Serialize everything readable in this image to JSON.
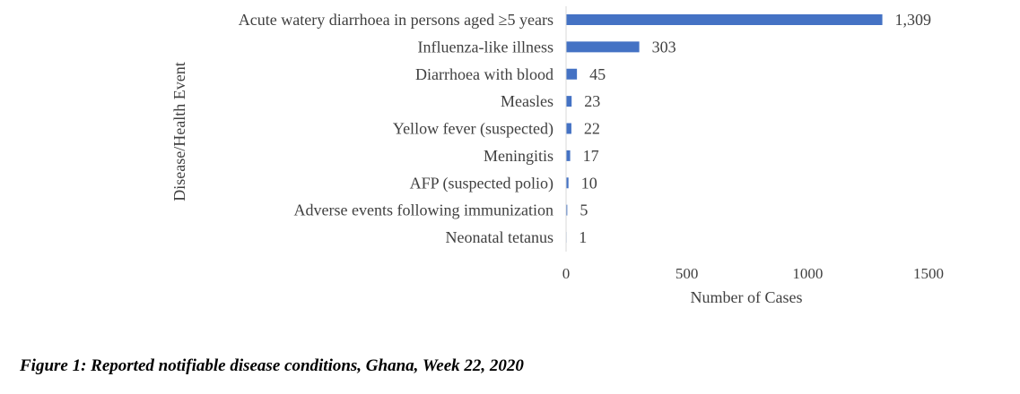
{
  "chart_data": {
    "type": "bar",
    "orientation": "horizontal",
    "categories": [
      "Acute watery diarrhoea in persons aged ≥5 years",
      "Influenza-like illness",
      "Diarrhoea with blood",
      "Measles",
      "Yellow fever (suspected)",
      "Meningitis",
      "AFP (suspected polio)",
      "Adverse events following immunization",
      "Neonatal tetanus"
    ],
    "values": [
      1309,
      303,
      45,
      23,
      22,
      17,
      10,
      5,
      1
    ],
    "value_labels": [
      "1,309",
      "303",
      "45",
      "23",
      "22",
      "17",
      "10",
      "5",
      "1"
    ],
    "xlabel": "Number of Cases",
    "ylabel": "Disease/Health Event",
    "xlim": [
      0,
      1500
    ],
    "xticks": [
      0,
      500,
      1000,
      1500
    ],
    "grid": false,
    "bar_color": "#4472C4"
  },
  "caption": "Figure 1: Reported notifiable disease conditions, Ghana, Week 22, 2020"
}
